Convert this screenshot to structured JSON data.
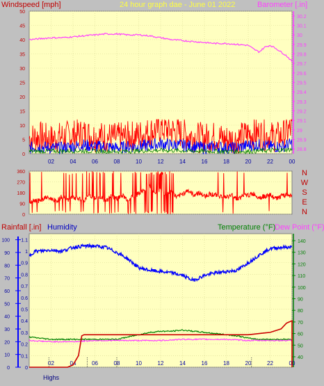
{
  "header": {
    "windspeed_label": "Windspeed [mph]",
    "title": "24 hour graph dae - June 01 2022",
    "barometer_label": "Barometer [.in]",
    "rainfall_label": "Rainfall [.in]",
    "humidity_label": "Humidity",
    "temperature_label": "Temperature (°F)",
    "dewpoint_label": "Dew Point (°F)",
    "footer_label": "Highs"
  },
  "colors": {
    "background": "#c0c0c0",
    "plot_bg": "#ffffc0",
    "windspeed": "#ff0000",
    "gust": "#0000ff",
    "wind_dark": "#008000",
    "barometer": "#ff40ff",
    "direction": "#ff0000",
    "rain": "#cc0000",
    "humidity": "#0000ff",
    "temperature": "#008000",
    "dewpoint": "#ff40ff",
    "temp_axis": "#008000",
    "rain_axis": "#0000ff"
  },
  "chart_data": [
    {
      "type": "line",
      "panel": "wind-barometer",
      "x_ticks": [
        "02",
        "04",
        "06",
        "08",
        "10",
        "12",
        "14",
        "16",
        "18",
        "20",
        "22",
        "00"
      ],
      "y_left_ticks": [
        "0",
        "5",
        "10",
        "15",
        "20",
        "25",
        "30",
        "35",
        "40",
        "45",
        "50"
      ],
      "y_right_ticks": [
        "28.8",
        "28.9",
        "29",
        "29.1",
        "29.2",
        "29.3",
        "29.4",
        "29.5",
        "29.6",
        "29.7",
        "29.8",
        "29.9",
        "30",
        "30.1",
        "30.2"
      ],
      "ylim_left": [
        0,
        50
      ],
      "ylim_right": [
        28.75,
        30.25
      ],
      "barometer": {
        "x": [
          0,
          1,
          2,
          3,
          4,
          5,
          6,
          7,
          8,
          9,
          10,
          11,
          12,
          13,
          14,
          15,
          16,
          17,
          18,
          19,
          20,
          20.5,
          21,
          21.5,
          22,
          22.5,
          23,
          23.5,
          24
        ],
        "values": [
          29.95,
          29.96,
          29.97,
          29.97,
          29.98,
          29.99,
          30.0,
          30.01,
          30.01,
          30.0,
          30.0,
          29.99,
          29.97,
          29.95,
          29.94,
          29.93,
          29.92,
          29.91,
          29.91,
          29.9,
          29.89,
          29.85,
          29.82,
          29.87,
          29.89,
          29.86,
          29.82,
          29.78,
          29.72
        ]
      },
      "windspeed": {
        "x": [
          0,
          1,
          2,
          3,
          4,
          5,
          6,
          7,
          8,
          9,
          10,
          11,
          12,
          13,
          14,
          15,
          16,
          17,
          18,
          19,
          20,
          21,
          22,
          23,
          24
        ],
        "values": [
          5.5,
          6,
          5,
          6,
          6.5,
          7,
          6,
          6,
          5.5,
          6,
          6.5,
          7.5,
          9,
          8,
          7,
          6,
          5.5,
          6,
          5,
          5,
          7,
          7,
          6,
          6,
          9
        ]
      },
      "gust": {
        "x": [
          0,
          1,
          2,
          3,
          4,
          5,
          6,
          7,
          8,
          9,
          10,
          11,
          12,
          13,
          14,
          15,
          16,
          17,
          18,
          19,
          20,
          21,
          22,
          23,
          24
        ],
        "values": [
          2,
          2.5,
          2,
          2,
          2.5,
          3,
          2.5,
          2.5,
          2,
          2.5,
          2.5,
          3,
          3.5,
          3,
          3,
          2.5,
          2,
          2.5,
          2,
          2,
          3,
          3,
          2.5,
          2.5,
          3.5
        ]
      },
      "calm": {
        "x": [
          0,
          4,
          8,
          12,
          16,
          20,
          24
        ],
        "values": [
          0.8,
          1,
          0.8,
          1.2,
          0.9,
          0.8,
          1.5
        ]
      }
    },
    {
      "type": "line",
      "panel": "wind-direction",
      "y_left_ticks": [
        "360",
        "270",
        "180",
        "90",
        "0"
      ],
      "y_right_ticks": [
        "N",
        "W",
        "S",
        "E",
        "N"
      ],
      "ylim": [
        0,
        360
      ],
      "direction": {
        "x": [
          0,
          0.5,
          1,
          1.5,
          2,
          2.5,
          3,
          3.5,
          4,
          4.5,
          5,
          5.5,
          6,
          6.5,
          7,
          7.5,
          8,
          8.5,
          9,
          9.5,
          10,
          10.5,
          11,
          11.5,
          12,
          12.5,
          13,
          13.5,
          14,
          14.5,
          15,
          15.5,
          16,
          16.5,
          17,
          17.5,
          18,
          18.5,
          19,
          19.5,
          20,
          20.5,
          21,
          21.5,
          22,
          22.5,
          23,
          23.5,
          24
        ],
        "values": [
          100,
          120,
          110,
          140,
          130,
          110,
          150,
          120,
          140,
          130,
          110,
          160,
          130,
          140,
          110,
          150,
          130,
          160,
          120,
          150,
          170,
          200,
          230,
          180,
          210,
          160,
          190,
          140,
          170,
          200,
          160,
          180,
          150,
          170,
          160,
          150,
          140,
          160,
          130,
          150,
          160,
          170,
          140,
          150,
          160,
          130,
          150,
          160,
          155
        ]
      }
    },
    {
      "type": "line",
      "panel": "rain-humidity-temperature",
      "x_ticks": [
        "02",
        "04",
        "06",
        "08",
        "10",
        "12",
        "14",
        "16",
        "18",
        "20",
        "22",
        "00"
      ],
      "y_rain_ticks": [
        "0",
        "0.1",
        "0.2",
        "0.3",
        "0.4",
        "0.5",
        "0.6",
        "0.7",
        "0.8",
        "0.9",
        "1",
        "1.1"
      ],
      "y_humidity_ticks": [
        "0",
        "10",
        "20",
        "30",
        "40",
        "50",
        "60",
        "70",
        "80",
        "90",
        "100"
      ],
      "y_temp_ticks": [
        "40",
        "50",
        "60",
        "70",
        "80",
        "90",
        "100",
        "110",
        "120",
        "130",
        "140"
      ],
      "rain_ylim": [
        0,
        1.15
      ],
      "humidity_ylim": [
        0,
        100
      ],
      "temp_ylim": [
        31,
        146
      ],
      "humidity": {
        "x": [
          0,
          0.5,
          1,
          2,
          3,
          4,
          5,
          6,
          7,
          8,
          9,
          10,
          11,
          12,
          13,
          14,
          15,
          16,
          17,
          18,
          19,
          20,
          21,
          22,
          23,
          24
        ],
        "values": [
          87,
          91,
          91,
          92,
          91,
          94,
          95,
          95,
          94,
          90,
          85,
          78,
          76,
          75,
          74,
          72,
          68,
          72,
          74,
          75,
          76,
          82,
          88,
          93,
          94,
          94
        ]
      },
      "temperature": {
        "x": [
          0,
          1,
          2,
          3,
          4,
          5,
          6,
          7,
          8,
          9,
          10,
          11,
          12,
          13,
          14,
          15,
          16,
          17,
          18,
          19,
          20,
          21,
          22,
          23,
          24
        ],
        "values": [
          57,
          56,
          55,
          55,
          55,
          55,
          55,
          55,
          55,
          57,
          59,
          61,
          62,
          62,
          63,
          62,
          61,
          60,
          59,
          58,
          56,
          55,
          55,
          55,
          55
        ]
      },
      "dewpoint": {
        "x": [
          0,
          2,
          4,
          6,
          8,
          10,
          12,
          14,
          16,
          18,
          20,
          22,
          24
        ],
        "values": [
          54,
          53,
          53,
          54,
          54,
          54,
          54,
          55,
          55,
          55,
          54,
          54,
          54
        ]
      },
      "rainfall": {
        "x": [
          0,
          3.5,
          4,
          4.5,
          4.8,
          5,
          10,
          15,
          20,
          21,
          22,
          23,
          23.5,
          24,
          24
        ],
        "values": [
          0,
          0,
          0.02,
          0.1,
          0.27,
          0.28,
          0.28,
          0.28,
          0.28,
          0.29,
          0.3,
          0.33,
          0.38,
          0.4,
          0
        ]
      },
      "highs_markers_x": [
        1.8,
        5.3,
        8.0,
        20.3
      ]
    }
  ]
}
